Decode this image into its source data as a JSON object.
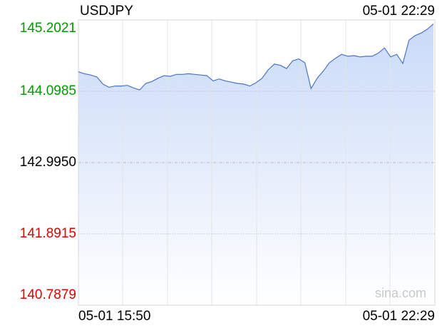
{
  "chart_data": {
    "type": "line",
    "title": "USDJPY",
    "updated": "05-01 22:29",
    "watermark": "sina.com",
    "categories": [
      "05-01 15:50",
      null,
      null,
      null,
      null,
      null,
      null,
      null,
      null,
      null,
      null,
      null,
      null,
      null,
      null,
      null,
      null,
      null,
      null,
      null,
      null,
      null,
      null,
      null,
      null,
      null,
      null,
      null,
      null,
      null,
      null,
      null,
      null,
      null,
      null,
      null,
      null,
      null,
      null,
      null,
      null,
      null,
      null,
      null,
      null,
      null,
      null,
      null,
      null,
      null,
      null,
      null,
      null,
      null,
      null,
      null,
      null,
      null,
      "05-01 22:29"
    ],
    "values": [
      144.4,
      144.37,
      144.35,
      144.32,
      144.21,
      144.16,
      144.18,
      144.18,
      144.19,
      144.15,
      144.12,
      144.22,
      144.25,
      144.3,
      144.34,
      144.33,
      144.36,
      144.36,
      144.37,
      144.36,
      144.35,
      144.34,
      144.26,
      144.29,
      144.26,
      144.24,
      144.22,
      144.21,
      144.18,
      144.23,
      144.3,
      144.43,
      144.52,
      144.5,
      144.45,
      144.57,
      144.6,
      144.54,
      144.14,
      144.3,
      144.41,
      144.54,
      144.61,
      144.67,
      144.64,
      144.65,
      144.63,
      144.64,
      144.64,
      144.69,
      144.77,
      144.63,
      144.67,
      144.53,
      144.89,
      144.96,
      145.0,
      145.06,
      145.14
    ],
    "color": "#4a74c4",
    "ylim": [
      140.7879,
      145.2021
    ],
    "yticks": [
      140.7879,
      141.8915,
      {
        "value": 142.995,
        "label": "142.9950"
      },
      144.0985,
      145.2021
    ],
    "ytick_colors": [
      "#dd0000",
      "#dd0000",
      "#000000",
      "#009900",
      "#009900"
    ],
    "grid": true
  }
}
